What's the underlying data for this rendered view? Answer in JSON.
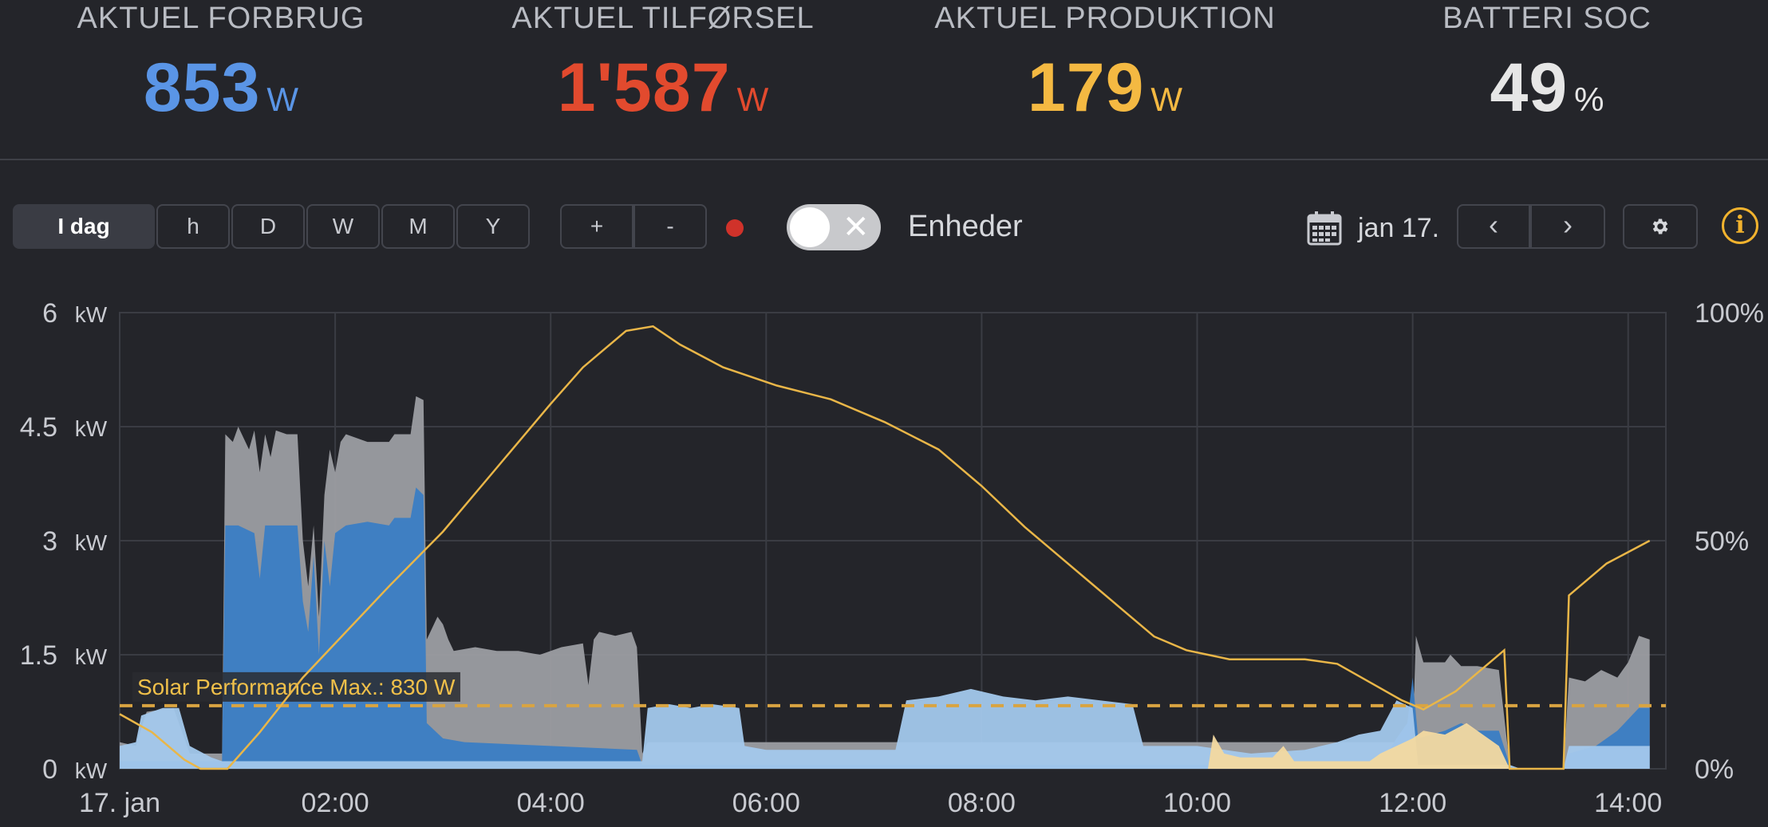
{
  "metrics": [
    {
      "title": "AKTUEL FORBRUG",
      "value": "853",
      "unit": "W",
      "color": "#5a95e6"
    },
    {
      "title": "AKTUEL TILFØRSEL",
      "value": "1'587",
      "unit": "W",
      "color": "#e24a2e"
    },
    {
      "title": "AKTUEL PRODUKTION",
      "value": "179",
      "unit": "W",
      "color": "#f4b942"
    },
    {
      "title": "BATTERI SOC",
      "value": "49",
      "unit": "%",
      "color": "#e6e6e6"
    }
  ],
  "toolbar": {
    "periods": [
      "I dag",
      "h",
      "D",
      "W",
      "M",
      "Y"
    ],
    "active_period": "I dag",
    "zoom_in": "+",
    "zoom_out": "-",
    "toggle_label": "Enheder",
    "toggle_on": false,
    "date": "jan 17.",
    "prev": "‹",
    "next": "›",
    "settings_icon": "gear-icon",
    "info_icon": "info-icon",
    "calendar_icon": "calendar-icon",
    "info_glyph": "i",
    "colors": {
      "record": "#d0322a",
      "info": "#f2b32e"
    }
  },
  "chart_data": {
    "type": "area",
    "x_tick_labels": [
      "17. jan",
      "02:00",
      "04:00",
      "06:00",
      "08:00",
      "10:00",
      "12:00",
      "14:00"
    ],
    "x_ticks_hours": [
      0,
      2,
      4,
      6,
      8,
      10,
      12,
      14
    ],
    "xlim_hours": [
      0,
      14.35
    ],
    "y_left": {
      "ticks": [
        0,
        1.5,
        3,
        4.5,
        6
      ],
      "labels": [
        "0",
        "1.5",
        "3",
        "4.5",
        "6"
      ],
      "unit": "kW",
      "ylim": [
        0,
        6
      ]
    },
    "y_right": {
      "ticks": [
        0,
        50,
        100
      ],
      "labels": [
        "0%",
        "50%",
        "100%"
      ],
      "ylim": [
        0,
        100
      ]
    },
    "reference_line": {
      "label": "Solar Performance Max.: 830 W",
      "value_kw": 0.83,
      "color": "#d9a441"
    },
    "series": [
      {
        "id": "grid_total",
        "kind": "area",
        "color": "#9c9da2",
        "points": [
          [
            0,
            0.35
          ],
          [
            0.15,
            0.3
          ],
          [
            0.25,
            0.75
          ],
          [
            0.5,
            0.8
          ],
          [
            0.65,
            0.2
          ],
          [
            0.8,
            0.2
          ],
          [
            0.95,
            0.2
          ],
          [
            0.98,
            4.4
          ],
          [
            1.05,
            4.3
          ],
          [
            1.1,
            4.5
          ],
          [
            1.2,
            4.2
          ],
          [
            1.25,
            4.45
          ],
          [
            1.3,
            3.9
          ],
          [
            1.35,
            4.4
          ],
          [
            1.4,
            4.1
          ],
          [
            1.45,
            4.45
          ],
          [
            1.55,
            4.4
          ],
          [
            1.65,
            4.4
          ],
          [
            1.7,
            3.0
          ],
          [
            1.75,
            2.4
          ],
          [
            1.8,
            3.2
          ],
          [
            1.85,
            2.0
          ],
          [
            1.9,
            3.6
          ],
          [
            1.95,
            4.2
          ],
          [
            2.0,
            3.9
          ],
          [
            2.05,
            4.3
          ],
          [
            2.1,
            4.4
          ],
          [
            2.3,
            4.3
          ],
          [
            2.5,
            4.3
          ],
          [
            2.55,
            4.4
          ],
          [
            2.7,
            4.4
          ],
          [
            2.75,
            4.9
          ],
          [
            2.82,
            4.85
          ],
          [
            2.85,
            1.7
          ],
          [
            2.95,
            2.0
          ],
          [
            3.0,
            1.9
          ],
          [
            3.05,
            1.7
          ],
          [
            3.1,
            1.55
          ],
          [
            3.3,
            1.6
          ],
          [
            3.5,
            1.55
          ],
          [
            3.7,
            1.55
          ],
          [
            3.9,
            1.5
          ],
          [
            4.1,
            1.6
          ],
          [
            4.3,
            1.65
          ],
          [
            4.35,
            1.1
          ],
          [
            4.4,
            1.7
          ],
          [
            4.45,
            1.8
          ],
          [
            4.6,
            1.75
          ],
          [
            4.75,
            1.8
          ],
          [
            4.8,
            1.6
          ],
          [
            4.85,
            0.2
          ],
          [
            4.9,
            0.35
          ],
          [
            12.0,
            0.35
          ],
          [
            12.03,
            1.75
          ],
          [
            12.1,
            1.4
          ],
          [
            12.3,
            1.4
          ],
          [
            12.35,
            1.5
          ],
          [
            12.45,
            1.35
          ],
          [
            12.6,
            1.35
          ],
          [
            12.8,
            1.3
          ],
          [
            12.9,
            0.05
          ],
          [
            13.0,
            0.0
          ],
          [
            13.4,
            0.0
          ],
          [
            13.45,
            1.2
          ],
          [
            13.6,
            1.15
          ],
          [
            13.75,
            1.3
          ],
          [
            13.9,
            1.2
          ],
          [
            14.0,
            1.4
          ],
          [
            14.1,
            1.75
          ],
          [
            14.2,
            1.7
          ],
          [
            14.2,
            0.0
          ]
        ]
      },
      {
        "id": "consumption",
        "kind": "area",
        "color": "#3a7dc4",
        "points": [
          [
            0,
            0.1
          ],
          [
            0.95,
            0.1
          ],
          [
            0.98,
            3.2
          ],
          [
            1.1,
            3.2
          ],
          [
            1.25,
            3.1
          ],
          [
            1.3,
            2.5
          ],
          [
            1.35,
            3.2
          ],
          [
            1.6,
            3.2
          ],
          [
            1.65,
            3.2
          ],
          [
            1.7,
            2.2
          ],
          [
            1.75,
            1.8
          ],
          [
            1.8,
            2.8
          ],
          [
            1.85,
            1.5
          ],
          [
            1.9,
            3.0
          ],
          [
            1.95,
            2.4
          ],
          [
            2.0,
            3.1
          ],
          [
            2.1,
            3.2
          ],
          [
            2.3,
            3.25
          ],
          [
            2.5,
            3.2
          ],
          [
            2.55,
            3.3
          ],
          [
            2.7,
            3.3
          ],
          [
            2.75,
            3.7
          ],
          [
            2.82,
            3.6
          ],
          [
            2.85,
            0.6
          ],
          [
            3.0,
            0.4
          ],
          [
            3.2,
            0.35
          ],
          [
            4.0,
            0.3
          ],
          [
            4.8,
            0.25
          ],
          [
            4.85,
            0.05
          ],
          [
            11.7,
            0.05
          ],
          [
            11.85,
            0.4
          ],
          [
            11.95,
            0.6
          ],
          [
            12.0,
            1.2
          ],
          [
            12.05,
            0.4
          ],
          [
            12.3,
            0.5
          ],
          [
            12.45,
            0.6
          ],
          [
            12.6,
            0.5
          ],
          [
            12.8,
            0.5
          ],
          [
            12.9,
            0.05
          ],
          [
            13.0,
            0.0
          ],
          [
            13.4,
            0.0
          ],
          [
            13.45,
            0.2
          ],
          [
            13.7,
            0.3
          ],
          [
            13.9,
            0.5
          ],
          [
            14.1,
            0.8
          ],
          [
            14.2,
            0.8
          ],
          [
            14.2,
            0.0
          ]
        ]
      },
      {
        "id": "battery",
        "kind": "area",
        "color": "#a3c8ec",
        "points": [
          [
            0,
            0.3
          ],
          [
            0.15,
            0.35
          ],
          [
            0.2,
            0.7
          ],
          [
            0.4,
            0.8
          ],
          [
            0.55,
            0.8
          ],
          [
            0.65,
            0.3
          ],
          [
            0.85,
            0.15
          ],
          [
            0.95,
            0.1
          ],
          [
            1.0,
            0.1
          ],
          [
            4.85,
            0.1
          ],
          [
            4.9,
            0.8
          ],
          [
            5.1,
            0.85
          ],
          [
            5.3,
            0.8
          ],
          [
            5.5,
            0.85
          ],
          [
            5.75,
            0.8
          ],
          [
            5.8,
            0.3
          ],
          [
            6.0,
            0.25
          ],
          [
            7.2,
            0.25
          ],
          [
            7.3,
            0.9
          ],
          [
            7.6,
            0.95
          ],
          [
            7.9,
            1.05
          ],
          [
            8.2,
            0.95
          ],
          [
            8.5,
            0.9
          ],
          [
            8.8,
            0.95
          ],
          [
            9.1,
            0.9
          ],
          [
            9.4,
            0.85
          ],
          [
            9.5,
            0.3
          ],
          [
            10.0,
            0.3
          ],
          [
            10.5,
            0.2
          ],
          [
            11.0,
            0.25
          ],
          [
            11.3,
            0.35
          ],
          [
            11.5,
            0.45
          ],
          [
            11.7,
            0.5
          ],
          [
            11.85,
            0.9
          ],
          [
            12.0,
            0.8
          ],
          [
            12.05,
            0.05
          ],
          [
            12.9,
            0.05
          ],
          [
            13.0,
            0.0
          ],
          [
            13.4,
            0.0
          ],
          [
            13.45,
            0.3
          ],
          [
            13.8,
            0.3
          ],
          [
            14.2,
            0.3
          ],
          [
            14.2,
            0.0
          ]
        ]
      },
      {
        "id": "production",
        "kind": "area",
        "color": "#f3d9a0",
        "points": [
          [
            0,
            0
          ],
          [
            10.1,
            0
          ],
          [
            10.15,
            0.45
          ],
          [
            10.25,
            0.2
          ],
          [
            10.4,
            0.15
          ],
          [
            10.7,
            0.15
          ],
          [
            10.8,
            0.3
          ],
          [
            10.9,
            0.1
          ],
          [
            11.6,
            0.1
          ],
          [
            11.7,
            0.2
          ],
          [
            12.0,
            0.4
          ],
          [
            12.1,
            0.5
          ],
          [
            12.3,
            0.45
          ],
          [
            12.5,
            0.6
          ],
          [
            12.8,
            0.3
          ],
          [
            12.9,
            0
          ],
          [
            14.2,
            0
          ]
        ]
      },
      {
        "id": "battery_soc",
        "kind": "line",
        "axis": "right",
        "color": "#e9b648",
        "points": [
          [
            0,
            12
          ],
          [
            0.3,
            8
          ],
          [
            0.6,
            2
          ],
          [
            0.75,
            0
          ],
          [
            1.0,
            0
          ],
          [
            1.3,
            8
          ],
          [
            1.7,
            20
          ],
          [
            2.1,
            30
          ],
          [
            2.5,
            40
          ],
          [
            3.0,
            52
          ],
          [
            3.5,
            66
          ],
          [
            4.0,
            80
          ],
          [
            4.3,
            88
          ],
          [
            4.7,
            96
          ],
          [
            4.95,
            97
          ],
          [
            5.2,
            93
          ],
          [
            5.6,
            88
          ],
          [
            6.1,
            84
          ],
          [
            6.6,
            81
          ],
          [
            7.1,
            76
          ],
          [
            7.6,
            70
          ],
          [
            8.0,
            62
          ],
          [
            8.4,
            53
          ],
          [
            8.7,
            47
          ],
          [
            9.0,
            41
          ],
          [
            9.3,
            35
          ],
          [
            9.6,
            29
          ],
          [
            9.9,
            26
          ],
          [
            10.3,
            24
          ],
          [
            10.6,
            24
          ],
          [
            11.0,
            24
          ],
          [
            11.3,
            23
          ],
          [
            11.6,
            19
          ],
          [
            11.9,
            15
          ],
          [
            12.1,
            13
          ],
          [
            12.4,
            17
          ],
          [
            12.7,
            23
          ],
          [
            12.85,
            26
          ],
          [
            12.9,
            0
          ],
          [
            13.4,
            0
          ],
          [
            13.45,
            38
          ],
          [
            13.8,
            45
          ],
          [
            14.2,
            50
          ]
        ]
      }
    ]
  }
}
